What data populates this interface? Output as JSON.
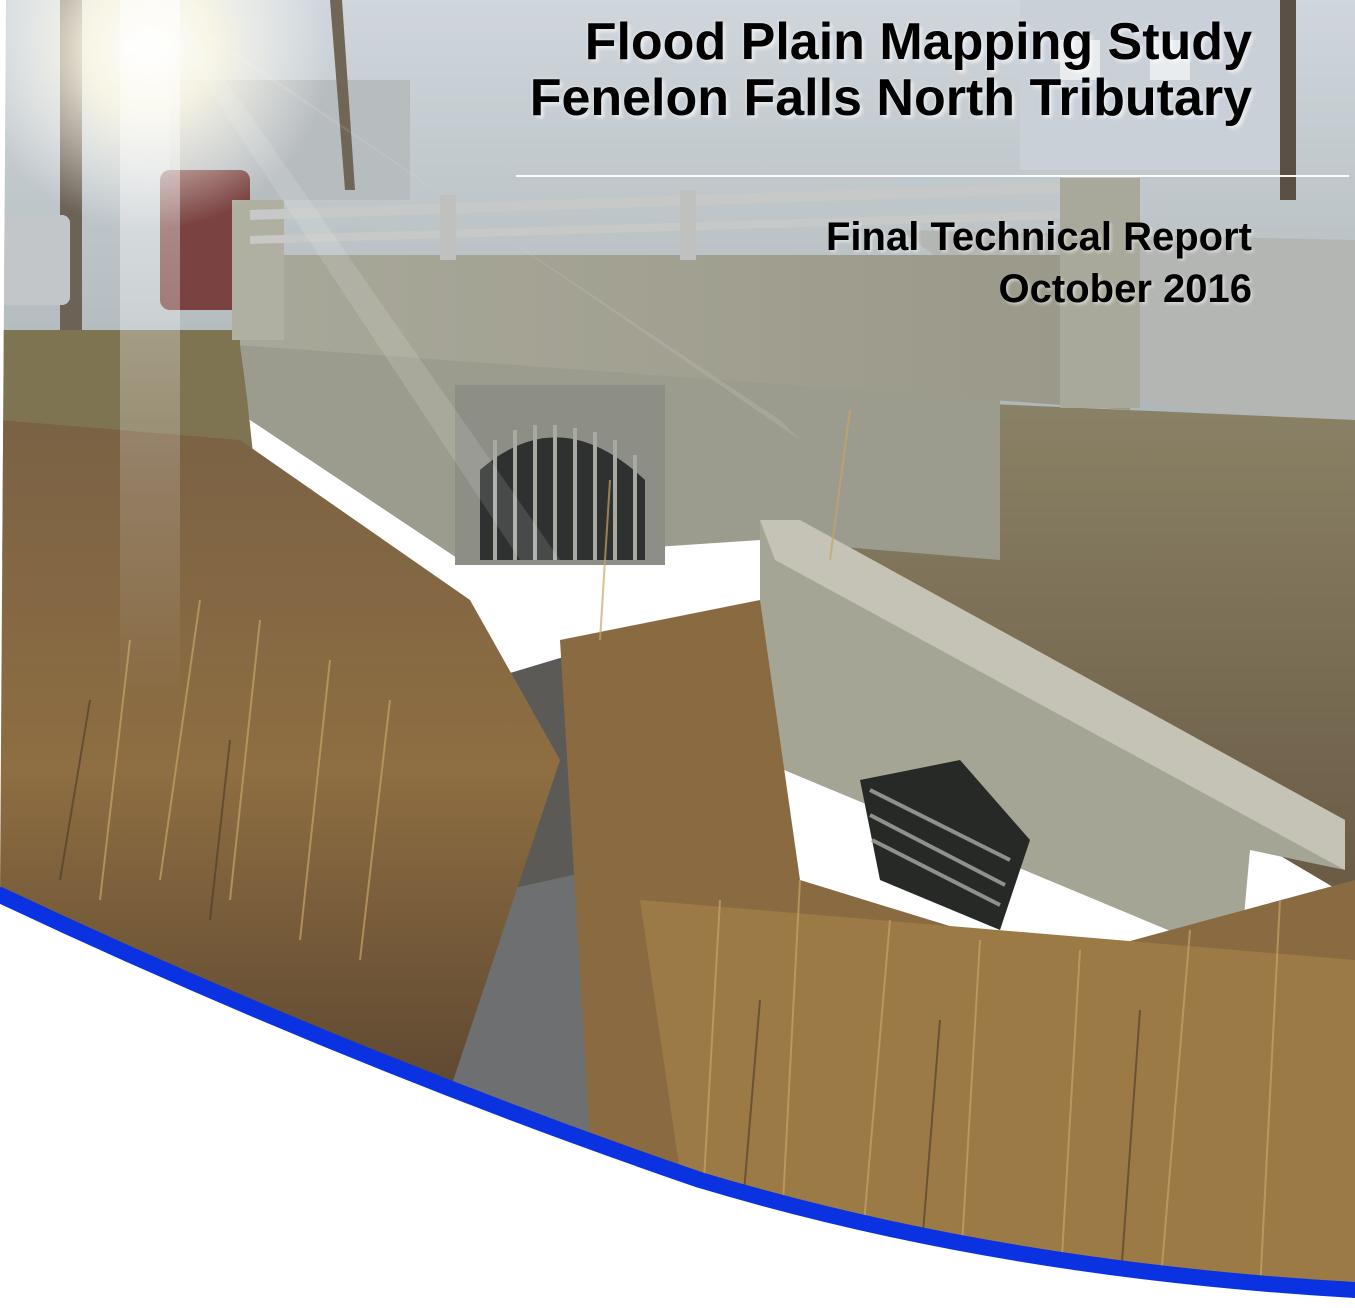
{
  "cover": {
    "title_line_1": "Flood Plain Mapping Study",
    "title_line_2": "Fenelon Falls North Tributary",
    "report_type": "Final Technical Report",
    "report_date": "October 2016"
  },
  "colors": {
    "accent_curve": "#0a32e0",
    "title_text": "#000000",
    "background": "#ffffff"
  }
}
